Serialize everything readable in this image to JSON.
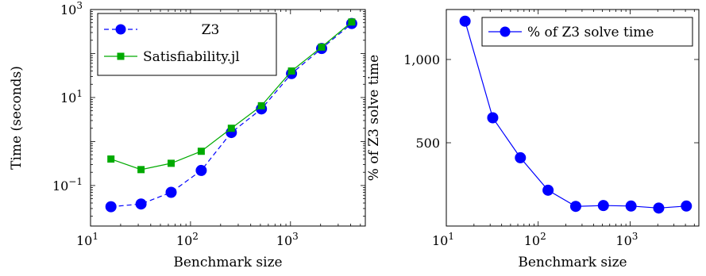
{
  "chart_data": [
    {
      "type": "line",
      "xlabel": "Benchmark size",
      "ylabel": "Time (seconds)",
      "x_scale": "log",
      "y_scale": "log",
      "xlim": [
        10,
        5600
      ],
      "ylim": [
        0.012,
        1000
      ],
      "x_ticks": [
        {
          "value": 10,
          "base": "10",
          "exp": "1"
        },
        {
          "value": 100,
          "base": "10",
          "exp": "2"
        },
        {
          "value": 1000,
          "base": "10",
          "exp": "3"
        }
      ],
      "y_ticks": [
        {
          "value": 0.1,
          "base": "10",
          "exp": "−1"
        },
        {
          "value": 10,
          "base": "10",
          "exp": "1"
        },
        {
          "value": 1000,
          "base": "10",
          "exp": "3"
        }
      ],
      "legend_position": "top-left",
      "x": [
        16,
        32,
        64,
        128,
        256,
        512,
        1024,
        2048,
        4096
      ],
      "series": [
        {
          "name": "Z3",
          "color": "#0000ff",
          "marker": "circle",
          "line": "dashed",
          "values": [
            0.033,
            0.038,
            0.07,
            0.22,
            1.6,
            5.5,
            35,
            130,
            480
          ]
        },
        {
          "name": "Satisfiability.jl",
          "color": "#00aa00",
          "marker": "square",
          "line": "solid",
          "values": [
            0.4,
            0.23,
            0.32,
            0.6,
            2.0,
            6.5,
            40,
            140,
            520
          ]
        }
      ]
    },
    {
      "type": "line",
      "xlabel": "Benchmark size",
      "ylabel": "% of Z3 solve time",
      "x_scale": "log",
      "y_scale": "linear",
      "xlim": [
        10,
        5600
      ],
      "ylim": [
        0,
        1300
      ],
      "x_ticks": [
        {
          "value": 10,
          "base": "10",
          "exp": "1"
        },
        {
          "value": 100,
          "base": "10",
          "exp": "2"
        },
        {
          "value": 1000,
          "base": "10",
          "exp": "3"
        }
      ],
      "y_ticks": [
        {
          "value": 500,
          "label": "500"
        },
        {
          "value": 1000,
          "label": "1,000"
        }
      ],
      "legend_position": "top-right",
      "x": [
        16,
        32,
        64,
        128,
        256,
        512,
        1024,
        2048,
        4096
      ],
      "series": [
        {
          "name": "% of Z3 solve time",
          "color": "#0000ff",
          "marker": "circle",
          "line": "solid",
          "values": [
            1230,
            650,
            410,
            215,
            118,
            123,
            120,
            108,
            120
          ]
        }
      ]
    }
  ]
}
